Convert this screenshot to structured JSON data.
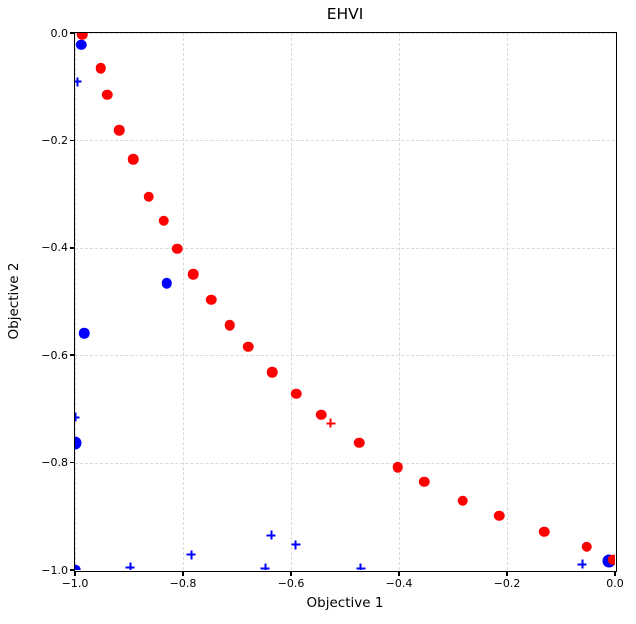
{
  "chart_data": {
    "type": "scatter",
    "title": "EHVI",
    "xlabel": "Objective 1",
    "ylabel": "Objective 2",
    "xlim": [
      -1.0,
      0.0
    ],
    "ylim": [
      -1.0,
      0.0
    ],
    "x_ticks": [
      -1.0,
      -0.8,
      -0.6,
      -0.4,
      -0.2,
      0.0
    ],
    "x_tick_labels": [
      "−1.0",
      "−0.8",
      "−0.6",
      "−0.4",
      "−0.2",
      "0.0"
    ],
    "y_ticks": [
      0.0,
      -0.2,
      -0.4,
      -0.6,
      -0.8,
      -1.0
    ],
    "y_tick_labels": [
      "0.0",
      "−0.2",
      "−0.4",
      "−0.6",
      "−0.8",
      "−1.0"
    ],
    "grid": true,
    "grid_style": "dashed",
    "grid_color": "#d9d9d9",
    "spine_color": "#000000",
    "legend": null,
    "series": [
      {
        "name": "observed-points-blue-dots",
        "marker": "circle",
        "color": "#0000ff",
        "size": 10.5,
        "points": [
          [
            -0.988,
            -0.022
          ],
          [
            -0.83,
            -0.466
          ],
          [
            -0.983,
            -0.559
          ],
          [
            -1.0,
            -0.764,
            13
          ],
          [
            -0.011,
            -0.984,
            13
          ],
          [
            -1.0,
            -1.0
          ]
        ]
      },
      {
        "name": "pareto-frontier-red-dots",
        "marker": "circle",
        "color": "#ff0000",
        "size": 10.5,
        "points": [
          [
            -0.987,
            -0.003
          ],
          [
            -0.952,
            -0.066
          ],
          [
            -0.94,
            -0.115
          ],
          [
            -0.918,
            -0.181
          ],
          [
            -0.892,
            -0.235
          ],
          [
            -0.863,
            -0.305
          ],
          [
            -0.836,
            -0.35
          ],
          [
            -0.811,
            -0.402
          ],
          [
            -0.781,
            -0.449
          ],
          [
            -0.748,
            -0.497
          ],
          [
            -0.713,
            -0.544
          ],
          [
            -0.679,
            -0.584
          ],
          [
            -0.635,
            -0.632
          ],
          [
            -0.59,
            -0.672
          ],
          [
            -0.544,
            -0.711
          ],
          [
            -0.474,
            -0.763
          ],
          [
            -0.402,
            -0.809
          ],
          [
            -0.353,
            -0.836
          ],
          [
            -0.282,
            -0.871
          ],
          [
            -0.214,
            -0.899
          ],
          [
            -0.131,
            -0.929
          ],
          [
            -0.052,
            -0.957
          ],
          [
            -0.003,
            -0.981
          ]
        ]
      },
      {
        "name": "candidate-points-blue-plus",
        "marker": "plus",
        "color": "#0000ff",
        "size": 9,
        "points": [
          [
            -0.996,
            -0.091
          ],
          [
            -1.0,
            -0.716
          ],
          [
            -0.785,
            -0.972
          ],
          [
            -0.637,
            -0.935
          ],
          [
            -0.591,
            -0.953
          ],
          [
            -0.648,
            -0.997
          ],
          [
            -0.898,
            -0.995
          ],
          [
            -0.471,
            -0.997
          ],
          [
            -0.061,
            -0.989
          ]
        ]
      },
      {
        "name": "selected-candidate-red-plus",
        "marker": "plus",
        "color": "#ff0000",
        "size": 9,
        "points": [
          [
            -0.526,
            -0.727
          ]
        ]
      }
    ]
  }
}
